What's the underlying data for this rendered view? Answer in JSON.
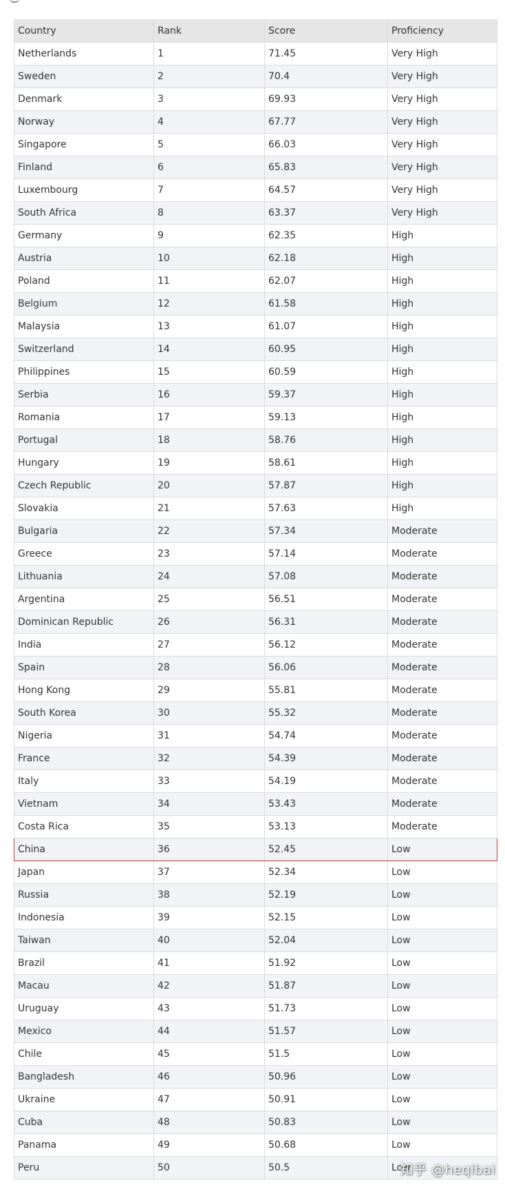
{
  "table": {
    "headers": [
      "Country",
      "Rank",
      "Score",
      "Proficiency"
    ],
    "highlight_rank": "36",
    "highlight_color": "#c0392b",
    "rows": [
      [
        "Netherlands",
        "1",
        "71.45",
        "Very High"
      ],
      [
        "Sweden",
        "2",
        "70.4",
        "Very High"
      ],
      [
        "Denmark",
        "3",
        "69.93",
        "Very High"
      ],
      [
        "Norway",
        "4",
        "67.77",
        "Very High"
      ],
      [
        "Singapore",
        "5",
        "66.03",
        "Very High"
      ],
      [
        "Finland",
        "6",
        "65.83",
        "Very High"
      ],
      [
        "Luxembourg",
        "7",
        "64.57",
        "Very High"
      ],
      [
        "South Africa",
        "8",
        "63.37",
        "Very High"
      ],
      [
        "Germany",
        "9",
        "62.35",
        "High"
      ],
      [
        "Austria",
        "10",
        "62.18",
        "High"
      ],
      [
        "Poland",
        "11",
        "62.07",
        "High"
      ],
      [
        "Belgium",
        "12",
        "61.58",
        "High"
      ],
      [
        "Malaysia",
        "13",
        "61.07",
        "High"
      ],
      [
        "Switzerland",
        "14",
        "60.95",
        "High"
      ],
      [
        "Philippines",
        "15",
        "60.59",
        "High"
      ],
      [
        "Serbia",
        "16",
        "59.37",
        "High"
      ],
      [
        "Romania",
        "17",
        "59.13",
        "High"
      ],
      [
        "Portugal",
        "18",
        "58.76",
        "High"
      ],
      [
        "Hungary",
        "19",
        "58.61",
        "High"
      ],
      [
        "Czech Republic",
        "20",
        "57.87",
        "High"
      ],
      [
        "Slovakia",
        "21",
        "57.63",
        "High"
      ],
      [
        "Bulgaria",
        "22",
        "57.34",
        "Moderate"
      ],
      [
        "Greece",
        "23",
        "57.14",
        "Moderate"
      ],
      [
        "Lithuania",
        "24",
        "57.08",
        "Moderate"
      ],
      [
        "Argentina",
        "25",
        "56.51",
        "Moderate"
      ],
      [
        "Dominican Republic",
        "26",
        "56.31",
        "Moderate"
      ],
      [
        "India",
        "27",
        "56.12",
        "Moderate"
      ],
      [
        "Spain",
        "28",
        "56.06",
        "Moderate"
      ],
      [
        "Hong Kong",
        "29",
        "55.81",
        "Moderate"
      ],
      [
        "South Korea",
        "30",
        "55.32",
        "Moderate"
      ],
      [
        "Nigeria",
        "31",
        "54.74",
        "Moderate"
      ],
      [
        "France",
        "32",
        "54.39",
        "Moderate"
      ],
      [
        "Italy",
        "33",
        "54.19",
        "Moderate"
      ],
      [
        "Vietnam",
        "34",
        "53.43",
        "Moderate"
      ],
      [
        "Costa Rica",
        "35",
        "53.13",
        "Moderate"
      ],
      [
        "China",
        "36",
        "52.45",
        "Low"
      ],
      [
        "Japan",
        "37",
        "52.34",
        "Low"
      ],
      [
        "Russia",
        "38",
        "52.19",
        "Low"
      ],
      [
        "Indonesia",
        "39",
        "52.15",
        "Low"
      ],
      [
        "Taiwan",
        "40",
        "52.04",
        "Low"
      ],
      [
        "Brazil",
        "41",
        "51.92",
        "Low"
      ],
      [
        "Macau",
        "42",
        "51.87",
        "Low"
      ],
      [
        "Uruguay",
        "43",
        "51.73",
        "Low"
      ],
      [
        "Mexico",
        "44",
        "51.57",
        "Low"
      ],
      [
        "Chile",
        "45",
        "51.5",
        "Low"
      ],
      [
        "Bangladesh",
        "46",
        "50.96",
        "Low"
      ],
      [
        "Ukraine",
        "47",
        "50.91",
        "Low"
      ],
      [
        "Cuba",
        "48",
        "50.83",
        "Low"
      ],
      [
        "Panama",
        "49",
        "50.68",
        "Low"
      ],
      [
        "Peru",
        "50",
        "50.5",
        "Low"
      ]
    ]
  },
  "watermark": "知乎 @heqibai"
}
